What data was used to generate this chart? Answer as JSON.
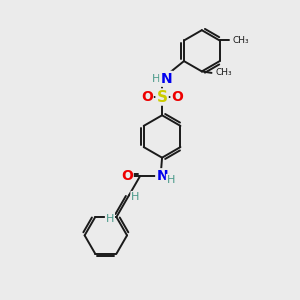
{
  "background_color": "#ebebeb",
  "bond_color": "#1a1a1a",
  "N_color": "#0000ee",
  "O_color": "#ee0000",
  "S_color": "#cccc00",
  "H_color": "#4a9a8a",
  "C_color": "#1a1a1a",
  "figsize": [
    3.0,
    3.0
  ],
  "dpi": 100,
  "xlim": [
    0,
    10
  ],
  "ylim": [
    0,
    10
  ]
}
